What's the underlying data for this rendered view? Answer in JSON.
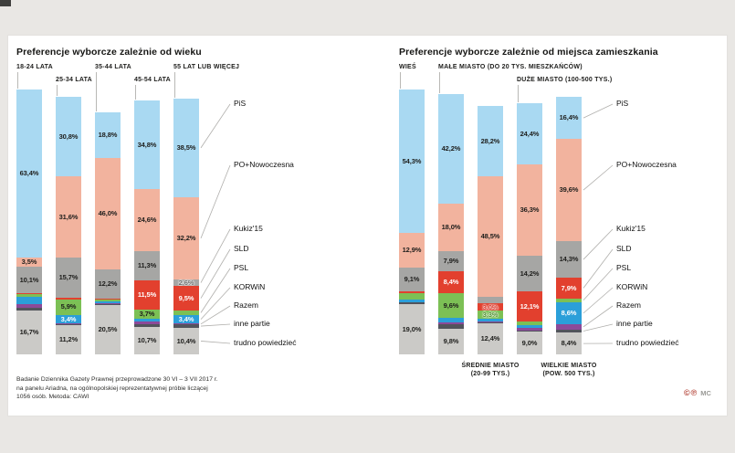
{
  "page": {
    "background": "#e9e7e4",
    "card_background": "#ffffff"
  },
  "marks": {
    "symbols": "©℗",
    "initials": "MC"
  },
  "footer": {
    "lines": [
      "Badanie Dziennika Gazety Prawnej przeprowadzone 30 VI – 3 VII 2017 r.",
      "na panelu Ariadna, na ogólnopolskiej reprezentatywnej próbie liczącej",
      "1056 osób. Metoda: CAWI"
    ]
  },
  "parties": [
    {
      "key": "pis",
      "name": "PiS",
      "color": "#a9d9f2",
      "text": "dark",
      "label_color": "#5b97bf"
    },
    {
      "key": "po",
      "name": "PO+Nowoczesna",
      "color": "#f2b39e",
      "text": "dark",
      "label_color": "#d98a6e"
    },
    {
      "key": "kukiz",
      "name": "Kukiz'15",
      "color": "#a6a6a4",
      "text": "dark",
      "label_color": "#6b6b69"
    },
    {
      "key": "sld",
      "name": "SLD",
      "color": "#e2402e",
      "text": "light",
      "label_color": "#d8372a"
    },
    {
      "key": "psl",
      "name": "PSL",
      "color": "#7cc055",
      "text": "dark",
      "label_color": "#4f8f2f"
    },
    {
      "key": "korwin",
      "name": "KORWiN",
      "color": "#2b9fd9",
      "text": "light",
      "label_color": "#1d7fb5"
    },
    {
      "key": "razem",
      "name": "Razem",
      "color": "#8c4a99",
      "text": "light",
      "label_color": "#8c4a99"
    },
    {
      "key": "inne",
      "name": "inne partie",
      "color": "#52545c",
      "text": "light",
      "label_color": "#52545c"
    },
    {
      "key": "trudno",
      "name": "trudno powiedzieć",
      "color": "#cbcac7",
      "text": "dark",
      "label_color": "#555553"
    }
  ],
  "chart_data": [
    {
      "type": "bar",
      "stacked": true,
      "unit": "%",
      "ylim": [
        0,
        100
      ],
      "legend_position": "right",
      "title": "Preferencje wyborcze zależnie od wieku",
      "categories": [
        {
          "label": "18-24 LATA",
          "row": 0
        },
        {
          "label": "25-34 LATA",
          "row": 1
        },
        {
          "label": "35-44 LATA",
          "row": 0
        },
        {
          "label": "45-54 LATA",
          "row": 1
        },
        {
          "label": "55 LAT LUB WIĘCEJ",
          "row": 0
        }
      ],
      "series": [
        {
          "party": "pis",
          "values": [
            63.4,
            30.8,
            18.8,
            34.8,
            38.5
          ],
          "labels": [
            "63,4%",
            "30,8%",
            "18,8%",
            "34,8%",
            "38,5%"
          ]
        },
        {
          "party": "po",
          "values": [
            3.5,
            31.6,
            46.0,
            24.6,
            32.2
          ],
          "labels": [
            "3,5%",
            "31,6%",
            "46,0%",
            "24,6%",
            "32,2%"
          ]
        },
        {
          "party": "kukiz",
          "values": [
            10.1,
            15.7,
            12.2,
            11.3,
            2.6
          ],
          "labels": [
            "10,1%",
            "15,7%",
            "12,2%",
            "11,3%",
            "2,6%"
          ]
        },
        {
          "party": "sld",
          "values": [
            0.4,
            0.6,
            0.5,
            11.5,
            9.5
          ],
          "labels": [
            null,
            null,
            null,
            "11,5%",
            "9,5%"
          ]
        },
        {
          "party": "psl",
          "values": [
            1.0,
            5.9,
            0.6,
            3.7,
            1.8
          ],
          "labels": [
            null,
            "5,9%",
            null,
            "3,7%",
            null
          ]
        },
        {
          "party": "korwin",
          "values": [
            2.8,
            3.4,
            0.6,
            1.2,
            3.4
          ],
          "labels": [
            null,
            "3,4%",
            null,
            null,
            "3,4%"
          ]
        },
        {
          "party": "razem",
          "values": [
            1.2,
            0.4,
            0.4,
            0.9,
            0.3
          ],
          "labels": [
            null,
            null,
            null,
            null,
            null
          ]
        },
        {
          "party": "inne",
          "values": [
            0.9,
            0.4,
            0.4,
            1.3,
            1.3
          ],
          "labels": [
            null,
            null,
            null,
            null,
            null
          ]
        },
        {
          "party": "trudno",
          "values": [
            16.7,
            11.2,
            20.5,
            10.7,
            10.4
          ],
          "labels": [
            "16,7%",
            "11,2%",
            "20,5%",
            "10,7%",
            "10,4%"
          ]
        }
      ]
    },
    {
      "type": "bar",
      "stacked": true,
      "unit": "%",
      "ylim": [
        0,
        100
      ],
      "legend_position": "right",
      "title": "Preferencje wyborcze zależnie od miejsca zamieszkania",
      "categories": [
        {
          "label": "WIEŚ",
          "row": 0
        },
        {
          "label": "MAŁE MIASTO (DO 20 TYS. MIESZKAŃCÓW)",
          "row": 0
        },
        {
          "label": "ŚREDNIE MIASTO",
          "label2": "(20-99 TYS.)",
          "position": "bottom"
        },
        {
          "label": "DUŻE MIASTO (100-500 TYS.)",
          "row": 1
        },
        {
          "label": "WIELKIE MIASTO",
          "label2": "(POW. 500 TYS.)",
          "position": "bottom"
        }
      ],
      "series": [
        {
          "party": "pis",
          "values": [
            54.3,
            42.2,
            28.2,
            24.4,
            16.4
          ],
          "labels": [
            "54,3%",
            "42,2%",
            "28,2%",
            "24,4%",
            "16,4%"
          ]
        },
        {
          "party": "po",
          "values": [
            12.9,
            18.0,
            48.5,
            36.3,
            39.6
          ],
          "labels": [
            "12,9%",
            "18,0%",
            "48,5%",
            "36,3%",
            "39,6%"
          ]
        },
        {
          "party": "kukiz",
          "values": [
            9.1,
            7.9,
            2.8,
            14.2,
            14.3
          ],
          "labels": [
            "9,1%",
            "7,9%",
            null,
            "14,2%",
            "14,3%"
          ]
        },
        {
          "party": "sld",
          "values": [
            0.6,
            8.4,
            3.0,
            12.1,
            7.9
          ],
          "labels": [
            null,
            "8,4%",
            "3,0%",
            "12,1%",
            "7,9%"
          ]
        },
        {
          "party": "psl",
          "values": [
            2.5,
            9.6,
            3.3,
            1.4,
            1.5
          ],
          "labels": [
            null,
            "9,6%",
            "3,3%",
            null,
            null
          ]
        },
        {
          "party": "korwin",
          "values": [
            0.8,
            1.5,
            0.8,
            1.2,
            8.6
          ],
          "labels": [
            null,
            null,
            null,
            null,
            "8,6%"
          ]
        },
        {
          "party": "razem",
          "values": [
            0.3,
            0.8,
            0.5,
            0.8,
            2.0
          ],
          "labels": [
            null,
            null,
            null,
            null,
            null
          ]
        },
        {
          "party": "inne",
          "values": [
            0.5,
            1.8,
            0.5,
            0.6,
            1.3
          ],
          "labels": [
            null,
            null,
            null,
            null,
            null
          ]
        },
        {
          "party": "trudno",
          "values": [
            19.0,
            9.8,
            12.4,
            9.0,
            8.4
          ],
          "labels": [
            "19,0%",
            "9,8%",
            "12,4%",
            "9,0%",
            "8,4%"
          ]
        }
      ]
    }
  ]
}
